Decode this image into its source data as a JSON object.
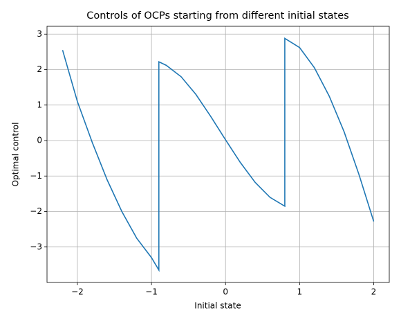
{
  "chart_data": {
    "type": "line",
    "title": "Controls of OCPs starting from different initial states",
    "xlabel": "Initial state",
    "ylabel": "Optimal control",
    "x": [
      -2.2,
      -2.0,
      -1.8,
      -1.6,
      -1.4,
      -1.2,
      -1.0,
      -0.9,
      -0.9,
      -0.8,
      -0.6,
      -0.4,
      -0.2,
      0,
      0.2,
      0.4,
      0.6,
      0.8,
      0.8,
      1.0,
      1.2,
      1.4,
      1.6,
      1.8,
      2.0
    ],
    "values": [
      2.55,
      1.1,
      -0.05,
      -1.1,
      -2.0,
      -2.75,
      -3.3,
      -3.65,
      2.22,
      2.12,
      1.8,
      1.3,
      0.68,
      0.02,
      -0.62,
      -1.18,
      -1.6,
      -1.85,
      2.88,
      2.62,
      2.05,
      1.25,
      0.25,
      -0.95,
      -2.28
    ],
    "color": "#1f77b4",
    "xlim": [
      -2.41,
      2.21
    ],
    "ylim": [
      -4.0,
      3.22
    ],
    "xticks": [
      {
        "value": -2,
        "label": "−2"
      },
      {
        "value": -1,
        "label": "−1"
      },
      0,
      1,
      2
    ],
    "yticks": [
      {
        "value": -3,
        "label": "−3"
      },
      {
        "value": -2,
        "label": "−2"
      },
      {
        "value": -1,
        "label": "−1"
      },
      0,
      1,
      2,
      3
    ],
    "grid": true
  }
}
